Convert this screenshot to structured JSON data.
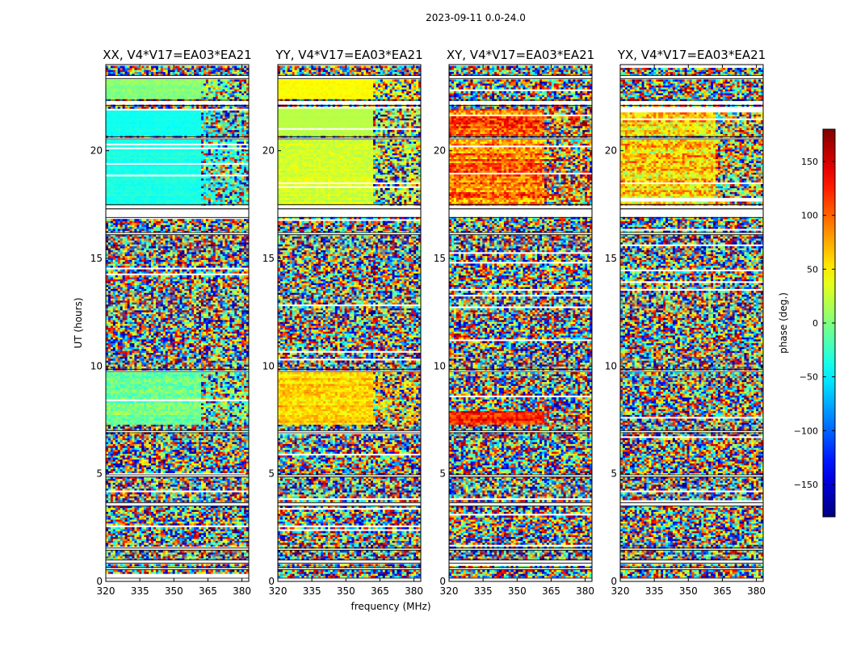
{
  "figure": {
    "suptitle": "2023-09-11 0.0-24.0",
    "xlabel": "frequency (MHz)",
    "ylabel": "UT (hours)"
  },
  "chart_data": {
    "type": "heatmap",
    "x_range": [
      320,
      383
    ],
    "y_range": [
      0,
      24
    ],
    "x_ticks": [
      "320",
      "335",
      "350",
      "365",
      "380"
    ],
    "y_ticks": [
      "0",
      "5",
      "10",
      "15",
      "20"
    ],
    "flagged_ut_ranges": [
      [
        0.0,
        0.15
      ],
      [
        0.55,
        0.65
      ],
      [
        0.85,
        1.0
      ],
      [
        1.45,
        1.55
      ],
      [
        3.5,
        3.65
      ],
      [
        4.85,
        4.95
      ],
      [
        6.9,
        7.0
      ],
      [
        9.75,
        9.85
      ],
      [
        16.1,
        16.2
      ],
      [
        16.9,
        17.3
      ],
      [
        17.3,
        17.5
      ],
      [
        20.55,
        20.65
      ],
      [
        22.1,
        22.35
      ],
      [
        23.35,
        23.5
      ]
    ],
    "strong_freq_boundary_mhz": 361,
    "panels": [
      {
        "title": "XX, V4*V17=EA03*EA21",
        "coherent": [
          {
            "ut": [
              7.3,
              9.8
            ],
            "phase": -5,
            "spread": 40
          },
          {
            "ut": [
              17.5,
              20.5
            ],
            "phase": -35,
            "spread": 15
          },
          {
            "ut": [
              20.7,
              22.0
            ],
            "phase": -40,
            "spread": 10
          },
          {
            "ut": [
              22.4,
              23.3
            ],
            "phase": 5,
            "spread": 20
          }
        ]
      },
      {
        "title": "YY, V4*V17=EA03*EA21",
        "coherent": [
          {
            "ut": [
              7.3,
              9.8
            ],
            "phase": 60,
            "spread": 40
          },
          {
            "ut": [
              17.5,
              20.5
            ],
            "phase": 30,
            "spread": 25
          },
          {
            "ut": [
              20.7,
              22.0
            ],
            "phase": 20,
            "spread": 5
          },
          {
            "ut": [
              22.4,
              23.3
            ],
            "phase": 45,
            "spread": 10
          }
        ]
      },
      {
        "title": "XY, V4*V17=EA03*EA21",
        "coherent": [
          {
            "ut": [
              7.3,
              7.9
            ],
            "phase": 120,
            "spread": 60
          },
          {
            "ut": [
              17.5,
              20.5
            ],
            "phase": 95,
            "spread": 80
          },
          {
            "ut": [
              20.7,
              22.0
            ],
            "phase": 100,
            "spread": 80
          }
        ]
      },
      {
        "title": "YX, V4*V17=EA03*EA21",
        "coherent": [
          {
            "ut": [
              17.5,
              20.5
            ],
            "phase": 60,
            "spread": 90
          },
          {
            "ut": [
              20.7,
              22.0
            ],
            "phase": 60,
            "spread": 90
          }
        ]
      }
    ],
    "colorbar": {
      "label": "phase (deg.)",
      "range": [
        -180,
        180
      ],
      "ticks": [
        "150",
        "100",
        "50",
        "0",
        "−50",
        "−100",
        "−150"
      ],
      "tick_values": [
        150,
        100,
        50,
        0,
        -50,
        -100,
        -150
      ],
      "colormap": "jet"
    }
  }
}
